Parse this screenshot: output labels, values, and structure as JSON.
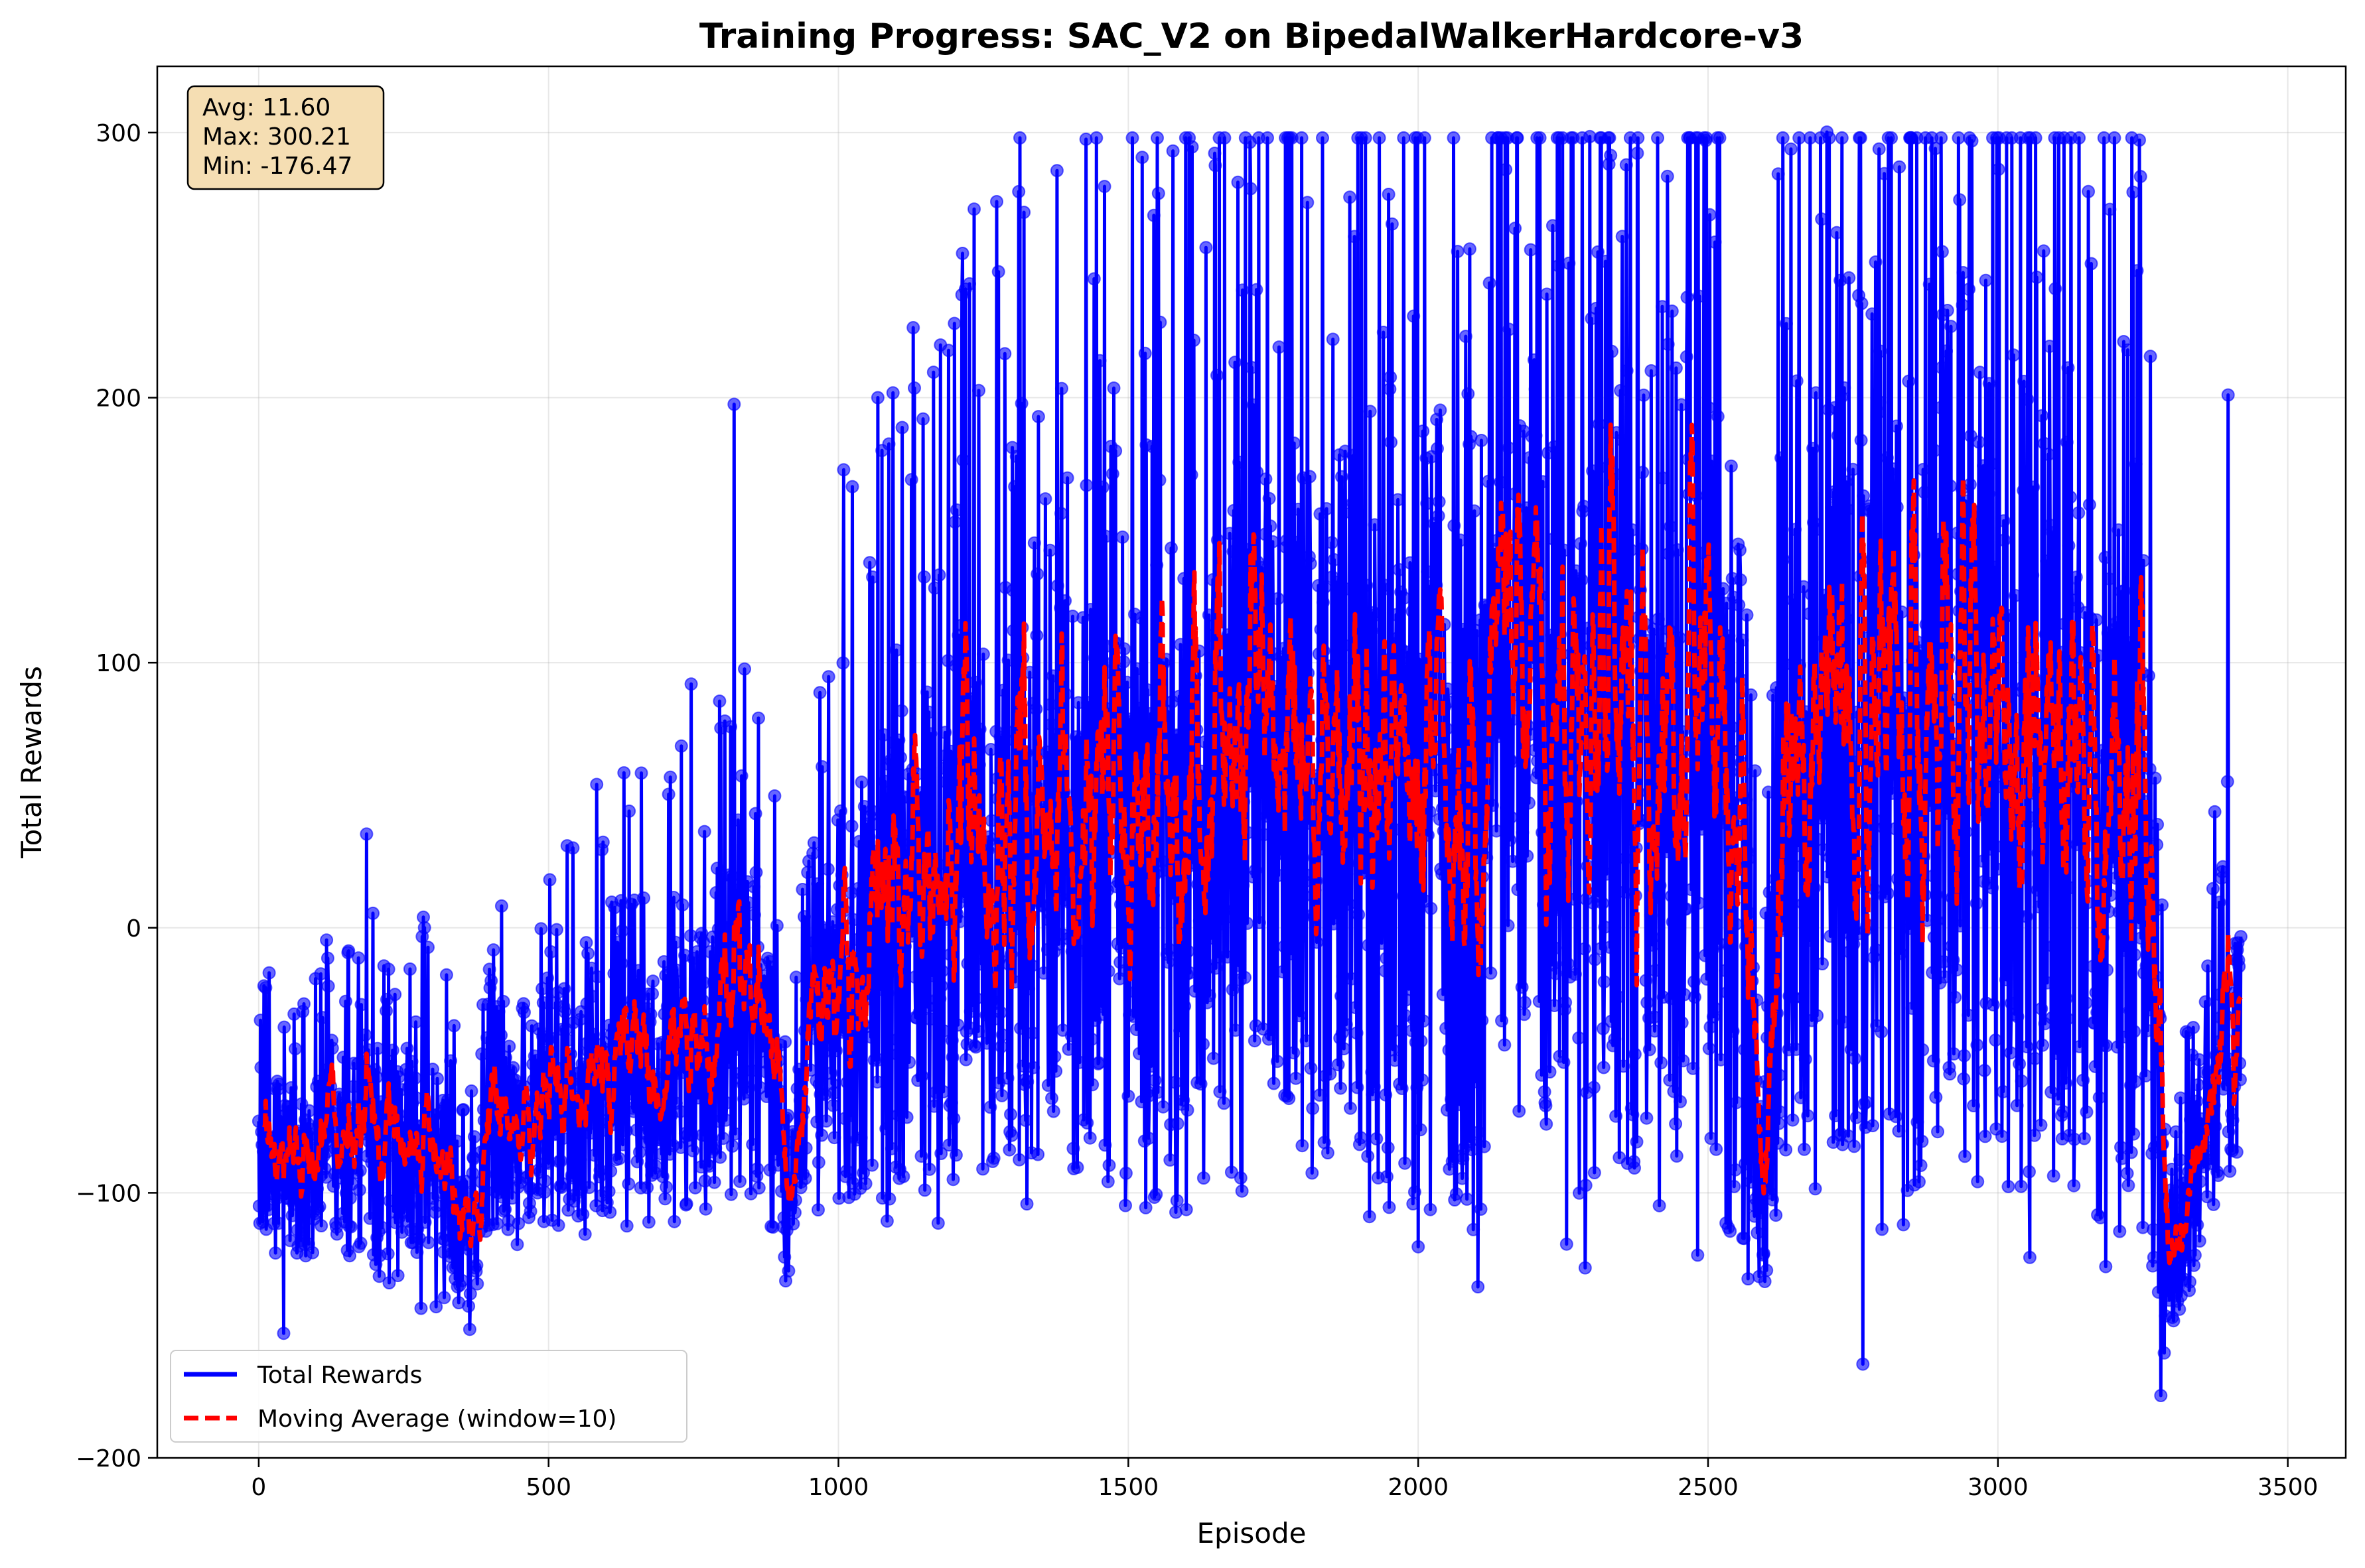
{
  "chart_data": {
    "type": "line",
    "title": "Training Progress: SAC_V2 on BipedalWalkerHardcore-v3",
    "xlabel": "Episode",
    "ylabel": "Total Rewards",
    "xlim": [
      -175,
      3600
    ],
    "ylim": [
      -200,
      325
    ],
    "x_ticks": [
      0,
      500,
      1000,
      1500,
      2000,
      2500,
      3000,
      3500
    ],
    "y_ticks": [
      -200,
      -100,
      0,
      100,
      200,
      300
    ],
    "grid": true,
    "legend_position": "lower-left",
    "stats": [
      "Avg: 11.60",
      "Max: 300.21",
      "Min: -176.47"
    ],
    "n_episodes": 3420,
    "series": [
      {
        "name": "Total Rewards",
        "style": "solid line with circle markers",
        "color": "#0000ff",
        "trend": [
          [
            0,
            -90,
            25
          ],
          [
            50,
            -85,
            30
          ],
          [
            100,
            -80,
            30
          ],
          [
            200,
            -75,
            40
          ],
          [
            300,
            -95,
            35
          ],
          [
            350,
            -110,
            25
          ],
          [
            400,
            -85,
            30
          ],
          [
            500,
            -65,
            35
          ],
          [
            600,
            -55,
            40
          ],
          [
            700,
            -50,
            45
          ],
          [
            800,
            -20,
            55
          ],
          [
            880,
            -40,
            50
          ],
          [
            910,
            -110,
            20
          ],
          [
            950,
            -40,
            30
          ],
          [
            1000,
            -20,
            70
          ],
          [
            1100,
            5,
            85
          ],
          [
            1200,
            10,
            90
          ],
          [
            1300,
            25,
            95
          ],
          [
            1400,
            40,
            95
          ],
          [
            1500,
            30,
            100
          ],
          [
            1600,
            40,
            105
          ],
          [
            1700,
            55,
            110
          ],
          [
            1800,
            55,
            110
          ],
          [
            1900,
            50,
            115
          ],
          [
            2000,
            55,
            120
          ],
          [
            2100,
            60,
            120
          ],
          [
            2200,
            100,
            120
          ],
          [
            2250,
            45,
            120
          ],
          [
            2300,
            75,
            120
          ],
          [
            2400,
            65,
            120
          ],
          [
            2500,
            60,
            120
          ],
          [
            2560,
            40,
            115
          ],
          [
            2590,
            -100,
            25
          ],
          [
            2620,
            20,
            115
          ],
          [
            2700,
            80,
            125
          ],
          [
            2800,
            45,
            125
          ],
          [
            2900,
            85,
            125
          ],
          [
            3000,
            75,
            125
          ],
          [
            3100,
            80,
            125
          ],
          [
            3200,
            45,
            115
          ],
          [
            3260,
            20,
            100
          ],
          [
            3290,
            -120,
            25
          ],
          [
            3320,
            -110,
            25
          ],
          [
            3360,
            -70,
            30
          ],
          [
            3400,
            -25,
            45
          ],
          [
            3420,
            -20,
            45
          ]
        ],
        "extremes": [
          [
            2705,
            300.21
          ],
          [
            2296,
            298.5
          ],
          [
            3281,
            -176.47
          ],
          [
            3287,
            -160.4
          ],
          [
            1200,
            228.0
          ],
          [
            820,
            197.5
          ],
          [
            3397,
            201.0
          ],
          [
            43,
            -153.0
          ],
          [
            364,
            -151.5
          ],
          [
            2496,
            297.0
          ]
        ]
      },
      {
        "name": "Moving Average (window=10)",
        "style": "dashed line",
        "color": "#ff0000"
      }
    ]
  }
}
